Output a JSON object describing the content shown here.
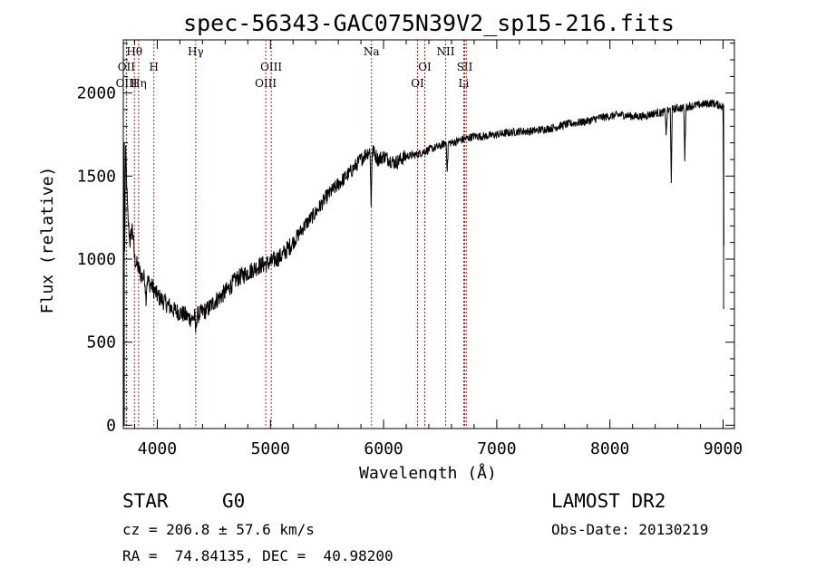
{
  "chart_data": {
    "type": "line",
    "title": "spec-56343-GAC075N39V2_sp15-216.fits",
    "xlabel": "Wavelength (Å)",
    "ylabel": "Flux (relative)",
    "xlim": [
      3700,
      9100
    ],
    "ylim": [
      -20,
      2320
    ],
    "xticks": [
      4000,
      5000,
      6000,
      7000,
      8000,
      9000
    ],
    "yticks": [
      0,
      500,
      1000,
      1500,
      2000
    ],
    "grid": false,
    "series": [
      {
        "x": [
          3700,
          3720,
          3740,
          3760,
          3780,
          3800,
          3830,
          3860,
          3900,
          3950,
          4000,
          4050,
          4100,
          4150,
          4200,
          4250,
          4300,
          4350,
          4400,
          4450,
          4500,
          4600,
          4700,
          4800,
          4900,
          5000,
          5100,
          5200,
          5300,
          5400,
          5500,
          5600,
          5700,
          5800,
          5850,
          5900,
          5950,
          6000,
          6100,
          6200,
          6300,
          6400,
          6500,
          6550,
          6600,
          6700,
          6800,
          6900,
          7000,
          7100,
          7200,
          7300,
          7400,
          7500,
          7600,
          7700,
          7800,
          7900,
          8000,
          8100,
          8200,
          8300,
          8400,
          8450,
          8500,
          8540,
          8600,
          8660,
          8700,
          8800,
          8900,
          9000,
          9010
        ],
        "values": [
          100,
          1650,
          1250,
          1100,
          1200,
          1000,
          950,
          900,
          880,
          840,
          780,
          750,
          720,
          690,
          680,
          660,
          640,
          660,
          680,
          700,
          740,
          800,
          880,
          920,
          960,
          980,
          1020,
          1100,
          1200,
          1280,
          1380,
          1450,
          1520,
          1600,
          1640,
          1660,
          1600,
          1620,
          1580,
          1620,
          1630,
          1660,
          1680,
          1700,
          1700,
          1720,
          1740,
          1740,
          1750,
          1760,
          1770,
          1770,
          1780,
          1790,
          1810,
          1820,
          1830,
          1850,
          1860,
          1870,
          1860,
          1860,
          1880,
          1880,
          1890,
          1900,
          1910,
          1910,
          1920,
          1930,
          1940,
          1920,
          700
        ],
        "dips": [
          {
            "x": 3900,
            "depth": 120
          },
          {
            "x": 4340,
            "depth": 100
          },
          {
            "x": 5890,
            "depth": 350
          },
          {
            "x": 6563,
            "depth": 180
          },
          {
            "x": 8498,
            "depth": 150
          },
          {
            "x": 8542,
            "depth": 430
          },
          {
            "x": 8662,
            "depth": 320
          }
        ]
      }
    ],
    "lines": [
      {
        "x": 3727,
        "label": "OII",
        "row": 2
      },
      {
        "x": 3729,
        "label": "OIII",
        "row": 3
      },
      {
        "x": 3798,
        "label": "Hθ",
        "row": 1
      },
      {
        "x": 3835,
        "label": "Hη",
        "row": 3
      },
      {
        "x": 3970,
        "label": "H",
        "row": 2
      },
      {
        "x": 4340,
        "label": "Hγ",
        "row": 1
      },
      {
        "x": 4959,
        "label": "OIII",
        "row": 3
      },
      {
        "x": 5007,
        "label": "OIII",
        "row": 2
      },
      {
        "x": 5893,
        "label": "Na",
        "row": 1
      },
      {
        "x": 6300,
        "label": "OI",
        "row": 3
      },
      {
        "x": 6364,
        "label": "OI",
        "row": 2
      },
      {
        "x": 6548,
        "label": "NII",
        "row": 1
      },
      {
        "x": 6708,
        "label": "Li",
        "row": 3
      },
      {
        "x": 6717,
        "label": "SII",
        "row": 2
      },
      {
        "x": 6731,
        "label": "",
        "row": 0
      }
    ],
    "colors": {
      "spectrum": "#000000",
      "lines": "#b22222"
    }
  },
  "info": {
    "class": "STAR",
    "subclass": "G0",
    "survey": "LAMOST DR2",
    "cz": "cz = 206.8 ± 57.6 km/s",
    "obs_date": "Obs-Date: 20130219",
    "coords": "RA =  74.84135, DEC =  40.98200"
  }
}
